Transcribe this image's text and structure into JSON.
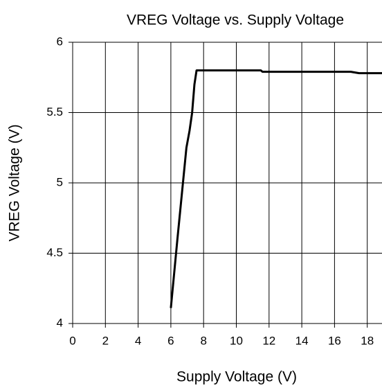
{
  "chart_data": {
    "type": "line",
    "title": "VREG Voltage vs. Supply Voltage",
    "xlabel": "Supply Voltage (V)",
    "ylabel": "VREG Voltage (V)",
    "x": [
      6.0,
      6.4,
      6.84,
      6.95,
      7.14,
      7.3,
      7.44,
      7.57,
      11.5,
      11.6,
      17.0,
      17.5,
      18.9
    ],
    "series": [
      {
        "name": "VREG",
        "color": "#000000",
        "values": [
          4.11,
          4.6,
          5.12,
          5.25,
          5.37,
          5.5,
          5.7,
          5.8,
          5.8,
          5.79,
          5.79,
          5.78,
          5.78
        ]
      }
    ],
    "xlim": [
      0,
      20
    ],
    "xticks": [
      0,
      2,
      4,
      6,
      8,
      10,
      12,
      14,
      16,
      18
    ],
    "ylim": [
      4,
      6
    ],
    "yticks": [
      4,
      4.5,
      5,
      5.5,
      6
    ],
    "grid": true
  }
}
